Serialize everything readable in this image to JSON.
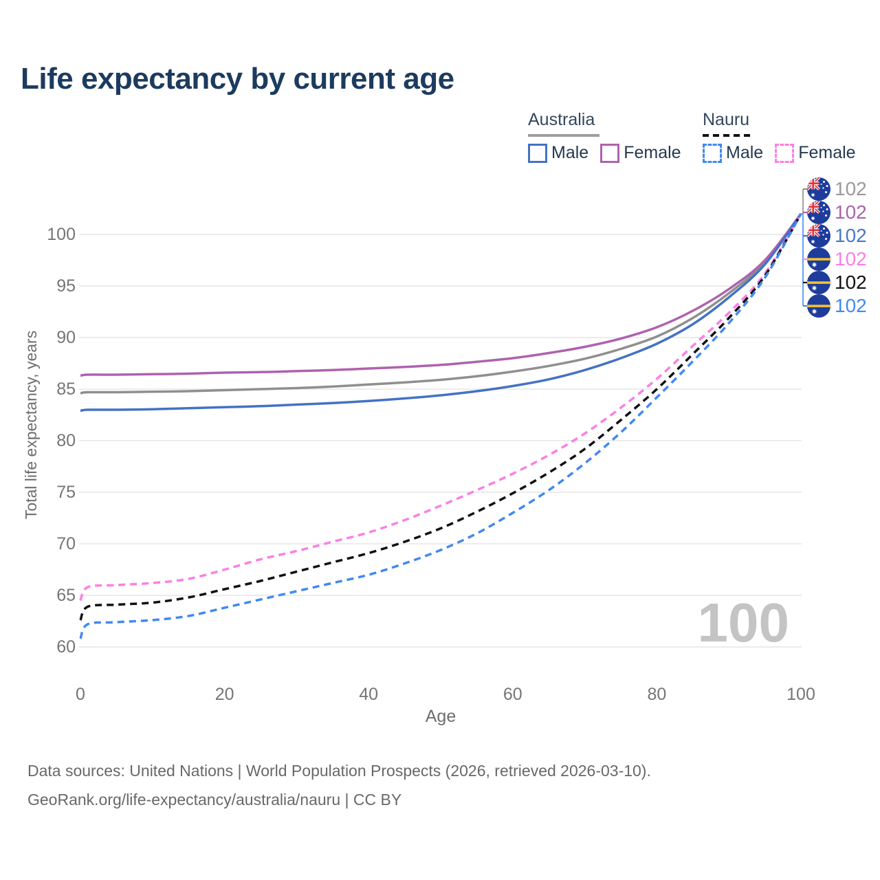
{
  "title": "Life expectancy by current age",
  "legend": {
    "groups": [
      {
        "name": "Australia",
        "line_style": "solid",
        "underline_color": "#9e9e9e",
        "items": [
          {
            "label": "Male",
            "color": "#4472c4"
          },
          {
            "label": "Female",
            "color": "#ae62ae"
          }
        ]
      },
      {
        "name": "Nauru",
        "line_style": "dashed",
        "underline_color": "#111111",
        "items": [
          {
            "label": "Male",
            "color": "#4189f0"
          },
          {
            "label": "Female",
            "color": "#fb80e3"
          }
        ]
      }
    ]
  },
  "watermark_age": "100",
  "footer": {
    "line1": "Data sources: United Nations | World Population Prospects (2026, retrieved 2026-03-10).",
    "line2": "GeoRank.org/life-expectancy/australia/nauru | CC BY"
  },
  "chart_data": {
    "type": "line",
    "title": "Life expectancy by current age",
    "xlabel": "Age",
    "ylabel": "Total life expectancy, years",
    "xlim": [
      0,
      100
    ],
    "ylim": [
      60,
      102
    ],
    "x_ticks": [
      0,
      20,
      40,
      60,
      80,
      100
    ],
    "y_ticks": [
      60,
      65,
      70,
      75,
      80,
      85,
      90,
      95,
      100
    ],
    "grid": "horizontal-only",
    "grid_color": "#ececec",
    "ages": [
      0,
      1,
      5,
      10,
      15,
      20,
      25,
      30,
      35,
      40,
      45,
      50,
      55,
      60,
      65,
      70,
      75,
      80,
      85,
      90,
      95,
      100
    ],
    "series": [
      {
        "name": "Australia Both sexes",
        "country": "Australia",
        "sex": "both",
        "flag": "australia",
        "color": "#8f8f8f",
        "label_color": "#9a9a9a",
        "line_style": "solid",
        "end_label": "102",
        "values": [
          84.6,
          84.7,
          84.7,
          84.75,
          84.8,
          84.9,
          85.0,
          85.1,
          85.25,
          85.45,
          85.65,
          85.9,
          86.25,
          86.7,
          87.25,
          87.95,
          88.9,
          90.1,
          91.9,
          94.3,
          97.3,
          102
        ]
      },
      {
        "name": "Australia Female",
        "country": "Australia",
        "sex": "female",
        "flag": "australia",
        "color": "#ae62ae",
        "label_color": "#a964a9",
        "line_style": "solid",
        "end_label": "102",
        "values": [
          86.3,
          86.4,
          86.4,
          86.45,
          86.5,
          86.6,
          86.65,
          86.75,
          86.85,
          87.0,
          87.15,
          87.35,
          87.65,
          88.0,
          88.5,
          89.1,
          89.9,
          91.0,
          92.6,
          94.7,
          97.5,
          102
        ]
      },
      {
        "name": "Australia Male",
        "country": "Australia",
        "sex": "male",
        "flag": "australia",
        "color": "#4472c4",
        "label_color": "#4b77c9",
        "line_style": "solid",
        "end_label": "102",
        "values": [
          82.9,
          83.0,
          83.0,
          83.05,
          83.15,
          83.25,
          83.35,
          83.5,
          83.65,
          83.85,
          84.1,
          84.4,
          84.8,
          85.3,
          85.95,
          86.85,
          88.0,
          89.4,
          91.3,
          93.9,
          97.1,
          102
        ]
      },
      {
        "name": "Nauru Female",
        "country": "Nauru",
        "sex": "female",
        "flag": "nauru",
        "color": "#fb80e3",
        "label_color": "#fb7ee6",
        "line_style": "dashed",
        "end_label": "102",
        "values": [
          64.5,
          65.8,
          66.0,
          66.2,
          66.6,
          67.5,
          68.5,
          69.3,
          70.2,
          71.1,
          72.3,
          73.7,
          75.2,
          76.8,
          78.6,
          80.7,
          83.2,
          86.0,
          89.2,
          92.4,
          96.2,
          102
        ]
      },
      {
        "name": "Nauru Both sexes",
        "country": "Nauru",
        "sex": "both",
        "flag": "nauru",
        "color": "#111111",
        "label_color": "#111111",
        "line_style": "dashed",
        "end_label": "102",
        "values": [
          62.6,
          63.9,
          64.1,
          64.3,
          64.8,
          65.6,
          66.4,
          67.3,
          68.2,
          69.1,
          70.2,
          71.5,
          73.1,
          74.9,
          76.9,
          79.2,
          82.0,
          85.0,
          88.4,
          91.9,
          96.0,
          102
        ]
      },
      {
        "name": "Nauru Male",
        "country": "Nauru",
        "sex": "male",
        "flag": "nauru",
        "color": "#4189f0",
        "label_color": "#4189f0",
        "line_style": "dashed",
        "end_label": "102",
        "values": [
          60.8,
          62.2,
          62.4,
          62.6,
          63.0,
          63.8,
          64.6,
          65.4,
          66.2,
          67.0,
          68.1,
          69.4,
          71.0,
          73.0,
          75.2,
          77.8,
          80.8,
          84.2,
          87.7,
          91.4,
          95.8,
          102
        ]
      }
    ],
    "flag_colors": {
      "flag_blue": "#1e3c9b",
      "nauru_stripe_yellow": "#f2c12e",
      "jack_red": "#e0343c",
      "star_white": "#ffffff"
    }
  }
}
